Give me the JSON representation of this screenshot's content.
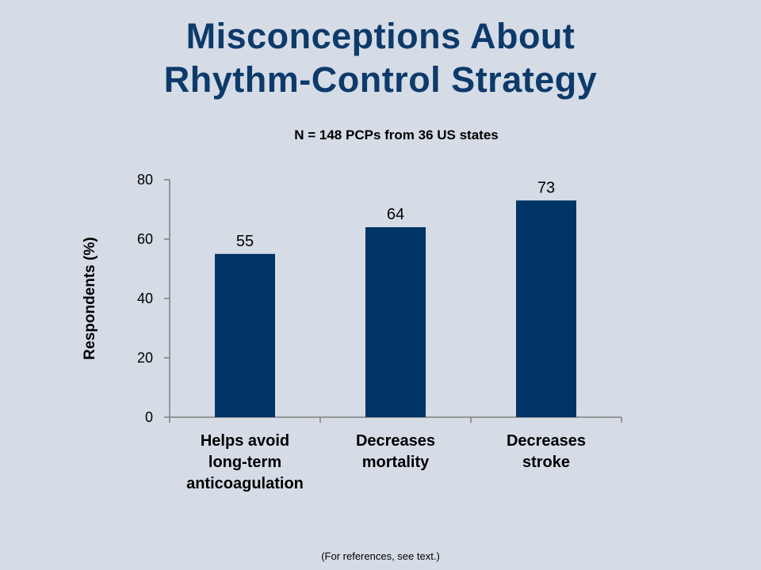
{
  "slide": {
    "title_line1": "Misconceptions About",
    "title_line2": "Rhythm-Control Strategy",
    "footnote": "(For references, see text.)"
  },
  "chart_data": {
    "type": "bar",
    "title": "N = 148 PCPs from 36 US states",
    "xlabel": "",
    "ylabel": "Respondents (%)",
    "ylim": [
      0,
      80
    ],
    "yticks": [
      0,
      20,
      40,
      60,
      80
    ],
    "grid": false,
    "legend": "none",
    "categories": [
      [
        "Helps avoid",
        "long-term",
        "anticoagulation"
      ],
      [
        "Decreases",
        "mortality"
      ],
      [
        "Decreases",
        "stroke"
      ]
    ],
    "values": [
      55,
      64,
      73
    ],
    "data_labels": [
      "55",
      "64",
      "73"
    ],
    "bar_color": "#003366"
  }
}
